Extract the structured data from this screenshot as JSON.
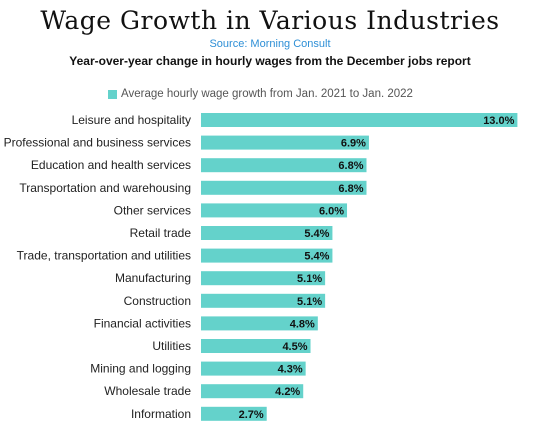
{
  "chart_data": {
    "type": "bar",
    "orientation": "horizontal",
    "title": "Wage Growth in Various Industries",
    "source": "Source: Morning Consult",
    "subtitle": "Year-over-year change in hourly wages from the December jobs report",
    "legend_position": "top-left",
    "grid": false,
    "xlim": [
      0,
      13.6
    ],
    "series": [
      {
        "name": "Average hourly wage growth from Jan. 2021 to Jan. 2022",
        "color": "#64d2cb",
        "values": [
          13.0,
          6.9,
          6.8,
          6.8,
          6.0,
          5.4,
          5.4,
          5.1,
          5.1,
          4.8,
          4.5,
          4.3,
          4.2,
          2.7
        ],
        "labels": [
          "13.0%",
          "6.9%",
          "6.8%",
          "6.8%",
          "6.0%",
          "5.4%",
          "5.4%",
          "5.1%",
          "5.1%",
          "4.8%",
          "4.5%",
          "4.3%",
          "4.2%",
          "2.7%"
        ]
      }
    ],
    "categories": [
      "Leisure and hospitality",
      "Professional and business services",
      "Education and health services",
      "Transportation and warehousing",
      "Other services",
      "Retail trade",
      "Trade, transportation and utilities",
      "Manufacturing",
      "Construction",
      "Financial activities",
      "Utilities",
      "Mining and logging",
      "Wholesale trade",
      "Information"
    ]
  }
}
